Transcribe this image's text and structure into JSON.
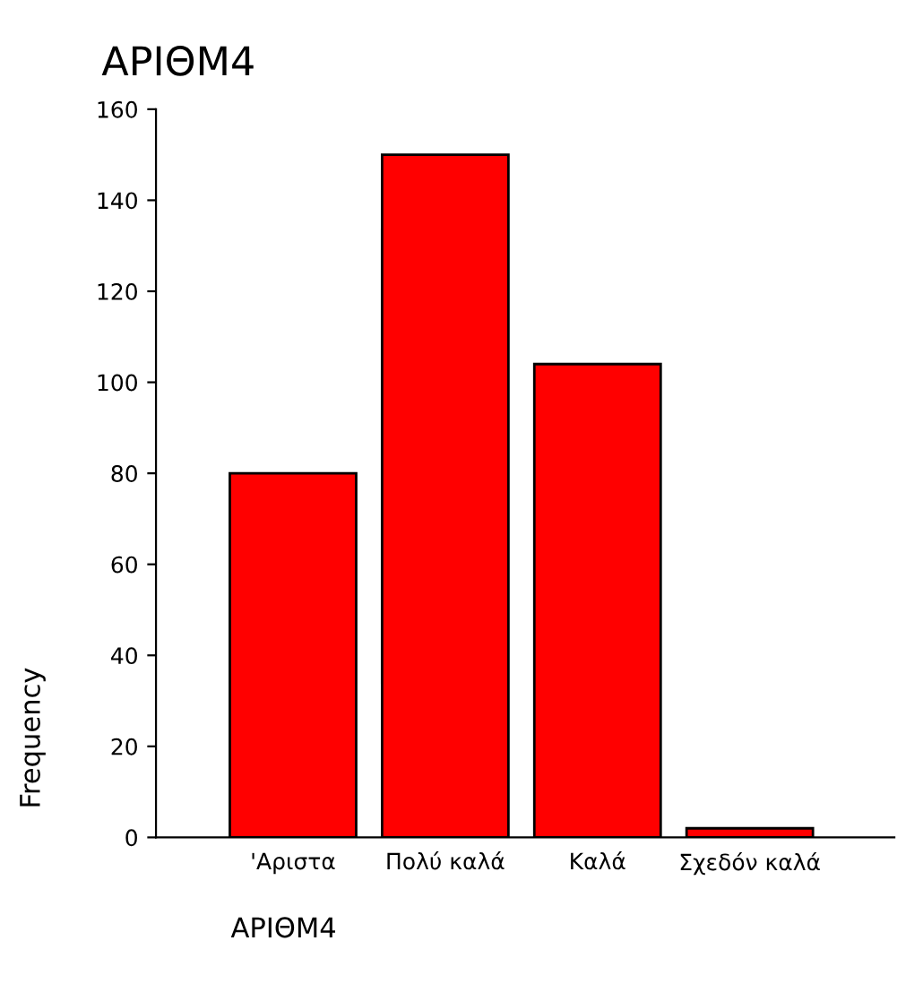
{
  "chart_data": {
    "type": "bar",
    "title": "ΑΡΙΘΜ4",
    "xlabel": "ΑΡΙΘΜ4",
    "ylabel": "Frequency",
    "categories": [
      "'Αριστα",
      "Πολύ καλά",
      "Καλά",
      "Σχεδόν καλά"
    ],
    "values": [
      80,
      150,
      104,
      2
    ],
    "color": "#ff0000",
    "ylim": [
      0,
      160
    ],
    "yticks": [
      0,
      20,
      40,
      60,
      80,
      100,
      120,
      140,
      160
    ],
    "grid": false
  }
}
